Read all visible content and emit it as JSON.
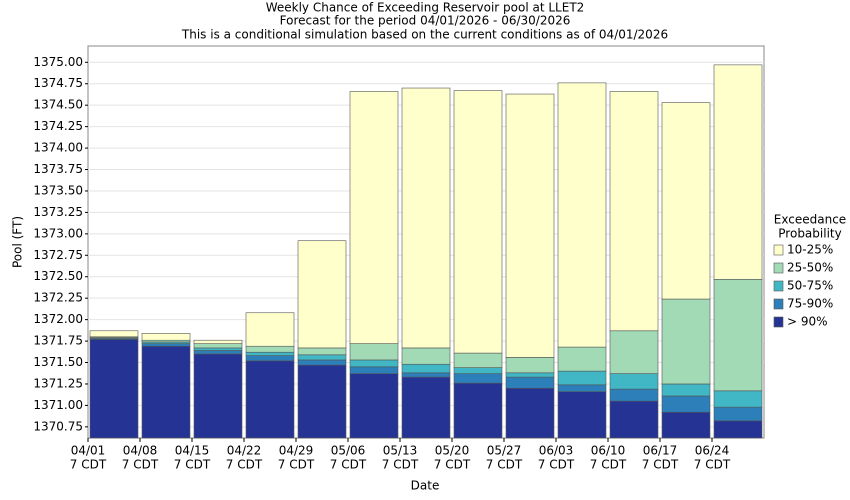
{
  "chart_data": {
    "type": "bar",
    "title": [
      "Weekly Chance of Exceeding Reservoir pool at LLET2",
      "Forecast for the period 04/01/2026 - 06/30/2026",
      "This is a conditional simulation based on the current conditions as of 04/01/2026"
    ],
    "x_label": "Date",
    "y_label": "Pool (FT)",
    "legend_title": [
      "Exceedance",
      "Probability"
    ],
    "categories": [
      [
        "04/01",
        "7 CDT"
      ],
      [
        "04/08",
        "7 CDT"
      ],
      [
        "04/15",
        "7 CDT"
      ],
      [
        "04/22",
        "7 CDT"
      ],
      [
        "04/29",
        "7 CDT"
      ],
      [
        "05/06",
        "7 CDT"
      ],
      [
        "05/13",
        "7 CDT"
      ],
      [
        "05/20",
        "7 CDT"
      ],
      [
        "05/27",
        "7 CDT"
      ],
      [
        "06/03",
        "7 CDT"
      ],
      [
        "06/10",
        "7 CDT"
      ],
      [
        "06/17",
        "7 CDT"
      ],
      [
        "06/24",
        "7 CDT"
      ]
    ],
    "series": [
      {
        "name": "10-25%",
        "color": "#ffffcc",
        "values": [
          1371.87,
          1371.84,
          1371.76,
          1372.08,
          1372.92,
          1374.66,
          1374.7,
          1374.67,
          1374.63,
          1374.76,
          1374.66,
          1374.53,
          1374.97
        ]
      },
      {
        "name": "25-50%",
        "color": "#a1dab4",
        "values": [
          1371.8,
          1371.76,
          1371.72,
          1371.69,
          1371.67,
          1371.72,
          1371.67,
          1371.61,
          1371.56,
          1371.68,
          1371.87,
          1372.24,
          1372.47
        ]
      },
      {
        "name": "50-75%",
        "color": "#41b6c4",
        "values": [
          1371.79,
          1371.74,
          1371.67,
          1371.62,
          1371.59,
          1371.53,
          1371.48,
          1371.44,
          1371.38,
          1371.4,
          1371.37,
          1371.25,
          1371.17
        ]
      },
      {
        "name": "75-90%",
        "color": "#2c7fb8",
        "values": [
          1371.78,
          1371.72,
          1371.64,
          1371.58,
          1371.53,
          1371.45,
          1371.38,
          1371.37,
          1371.33,
          1371.24,
          1371.19,
          1371.11,
          1370.98
        ]
      },
      {
        "name": "> 90%",
        "color": "#253494",
        "values": [
          1371.77,
          1371.69,
          1371.6,
          1371.52,
          1371.47,
          1371.37,
          1371.33,
          1371.26,
          1371.2,
          1371.16,
          1371.05,
          1370.92,
          1370.82
        ]
      }
    ],
    "ylim": [
      1370.62,
      1375.19
    ],
    "yticks": [
      1370.75,
      {
        "value": 1371.0,
        "label": "1371.00"
      },
      1371.25,
      {
        "value": 1371.5,
        "label": "1371.50"
      },
      1371.75,
      {
        "value": 1372.0,
        "label": "1372.00"
      },
      1372.25,
      {
        "value": 1372.5,
        "label": "1372.50"
      },
      1372.75,
      {
        "value": 1373.0,
        "label": "1373.00"
      },
      1373.25,
      {
        "value": 1373.5,
        "label": "1373.50"
      },
      1373.75,
      {
        "value": 1374.0,
        "label": "1374.00"
      },
      1374.25,
      {
        "value": 1374.5,
        "label": "1374.50"
      },
      1374.75,
      {
        "value": 1375.0,
        "label": "1375.00"
      }
    ],
    "grid": true,
    "legend": "right"
  }
}
